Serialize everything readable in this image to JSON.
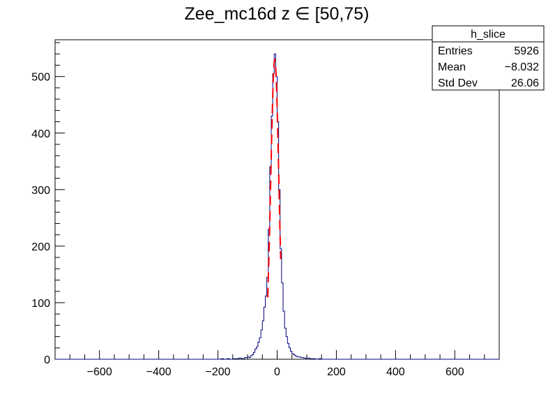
{
  "chart_data": {
    "type": "histogram",
    "title": "Zee_mc16d z  ∈ [50,75)",
    "xlim": [
      -750,
      750
    ],
    "ylim": [
      0,
      565
    ],
    "x_ticks": [
      -600,
      -400,
      -200,
      0,
      200,
      400,
      600
    ],
    "x_tick_labels": [
      "−600",
      "−400",
      "−200",
      "0",
      "200",
      "400",
      "600"
    ],
    "y_ticks": [
      0,
      100,
      200,
      300,
      400,
      500
    ],
    "y_tick_labels": [
      "0",
      "100",
      "200",
      "300",
      "400",
      "500"
    ],
    "colors": {
      "histogram": "#000080",
      "fit": "#ff0000",
      "frame": "#000000"
    },
    "stats_box": {
      "name": "h_slice",
      "rows": [
        {
          "label": "Entries",
          "value": "5926"
        },
        {
          "label": "Mean",
          "value": "−8.032"
        },
        {
          "label": "Std Dev",
          "value": "26.06"
        }
      ]
    },
    "histogram": {
      "name": "h_slice",
      "bins": [
        [
          -200,
          0
        ],
        [
          -190,
          1
        ],
        [
          -180,
          0
        ],
        [
          -170,
          1
        ],
        [
          -160,
          0
        ],
        [
          -150,
          1
        ],
        [
          -140,
          1
        ],
        [
          -130,
          2
        ],
        [
          -120,
          1
        ],
        [
          -110,
          3
        ],
        [
          -100,
          4
        ],
        [
          -95,
          3
        ],
        [
          -90,
          6
        ],
        [
          -85,
          8
        ],
        [
          -80,
          12
        ],
        [
          -75,
          18
        ],
        [
          -70,
          22
        ],
        [
          -65,
          30
        ],
        [
          -60,
          38
        ],
        [
          -55,
          52
        ],
        [
          -50,
          68
        ],
        [
          -45,
          92
        ],
        [
          -40,
          112
        ],
        [
          -35,
          145
        ],
        [
          -30,
          230
        ],
        [
          -25,
          340
        ],
        [
          -20,
          430
        ],
        [
          -15,
          505
        ],
        [
          -10,
          540
        ],
        [
          -5,
          500
        ],
        [
          0,
          420
        ],
        [
          5,
          300
        ],
        [
          10,
          195
        ],
        [
          15,
          135
        ],
        [
          20,
          85
        ],
        [
          25,
          55
        ],
        [
          30,
          40
        ],
        [
          35,
          28
        ],
        [
          40,
          20
        ],
        [
          45,
          14
        ],
        [
          50,
          10
        ],
        [
          55,
          8
        ],
        [
          60,
          6
        ],
        [
          65,
          5
        ],
        [
          70,
          4
        ],
        [
          80,
          3
        ],
        [
          90,
          2
        ],
        [
          100,
          2
        ],
        [
          110,
          1
        ],
        [
          120,
          1
        ],
        [
          130,
          0
        ],
        [
          140,
          1
        ],
        [
          150,
          0
        ]
      ]
    },
    "fit": {
      "type": "gaussian",
      "amplitude": 530,
      "mean": -8,
      "sigma": 13.5,
      "x_range": [
        -32,
        12
      ]
    }
  }
}
